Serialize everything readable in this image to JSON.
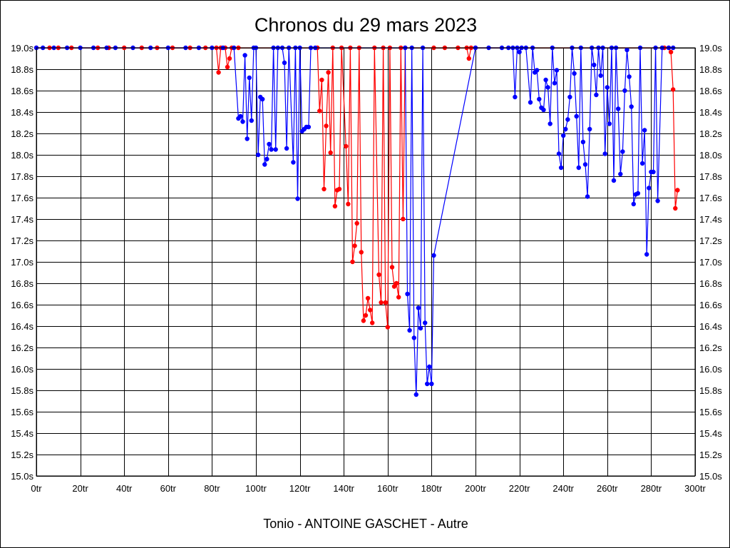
{
  "chart_data": {
    "type": "line",
    "title": "Chronos du 29 mars 2023",
    "footer": "Tonio - ANTOINE GASCHET - Autre",
    "x_unit": "tr",
    "y_unit": "s",
    "xlim": [
      0,
      300
    ],
    "ylim": [
      15.0,
      19.0
    ],
    "x_ticks": [
      0,
      20,
      40,
      60,
      80,
      100,
      120,
      140,
      160,
      180,
      200,
      220,
      240,
      260,
      280,
      300
    ],
    "y_ticks": [
      15.0,
      15.2,
      15.4,
      15.6,
      15.8,
      16.0,
      16.2,
      16.4,
      16.6,
      16.8,
      17.0,
      17.2,
      17.4,
      17.6,
      17.8,
      18.0,
      18.2,
      18.4,
      18.6,
      18.8,
      19.0
    ],
    "grid": true,
    "series": [
      {
        "color": "#ff0000",
        "points": [
          [
            0,
            19.0
          ],
          [
            6,
            19.0
          ],
          [
            10,
            19.0
          ],
          [
            16,
            19.0
          ],
          [
            28,
            19.0
          ],
          [
            33,
            19.0
          ],
          [
            40,
            19.0
          ],
          [
            48,
            19.0
          ],
          [
            55,
            19.0
          ],
          [
            62,
            19.0
          ],
          [
            70,
            19.0
          ],
          [
            77,
            19.0
          ],
          [
            82,
            19.0
          ],
          [
            83,
            18.77
          ],
          [
            84,
            19.0
          ],
          [
            86,
            19.0
          ],
          [
            87,
            18.82
          ],
          [
            88,
            18.9
          ],
          [
            89,
            19.0
          ],
          [
            92,
            19.0
          ],
          [
            128,
            19.0
          ],
          [
            129,
            18.41
          ],
          [
            130,
            18.7
          ],
          [
            131,
            17.68
          ],
          [
            132,
            18.27
          ],
          [
            133,
            18.77
          ],
          [
            134,
            18.02
          ],
          [
            135,
            19.0
          ],
          [
            136,
            17.52
          ],
          [
            137,
            17.67
          ],
          [
            138,
            17.68
          ],
          [
            139,
            19.0
          ],
          [
            141,
            18.08
          ],
          [
            142,
            17.54
          ],
          [
            143,
            19.0
          ],
          [
            144,
            17.0
          ],
          [
            145,
            17.15
          ],
          [
            146,
            17.36
          ],
          [
            147,
            19.0
          ],
          [
            148,
            17.09
          ],
          [
            149,
            16.45
          ],
          [
            150,
            16.5
          ],
          [
            151,
            16.66
          ],
          [
            152,
            16.55
          ],
          [
            153,
            16.43
          ],
          [
            154,
            19.0
          ],
          [
            156,
            16.88
          ],
          [
            157,
            16.62
          ],
          [
            158,
            19.0
          ],
          [
            159,
            16.62
          ],
          [
            160,
            16.39
          ],
          [
            161,
            19.0
          ],
          [
            162,
            16.95
          ],
          [
            163,
            16.77
          ],
          [
            164,
            16.8
          ],
          [
            165,
            16.67
          ],
          [
            166,
            19.0
          ],
          [
            167,
            17.4
          ],
          [
            168,
            19.0
          ],
          [
            181,
            19.0
          ],
          [
            186,
            19.0
          ],
          [
            192,
            19.0
          ],
          [
            196,
            19.0
          ],
          [
            197,
            18.9
          ],
          [
            198,
            19.0
          ],
          [
            200,
            19.0
          ],
          [
            286,
            19.0
          ],
          [
            288,
            19.0
          ],
          [
            289,
            18.96
          ],
          [
            290,
            18.61
          ],
          [
            291,
            17.5
          ],
          [
            292,
            17.67
          ]
        ]
      },
      {
        "color": "#0000ff",
        "points": [
          [
            0,
            19.0
          ],
          [
            3,
            19.0
          ],
          [
            8,
            19.0
          ],
          [
            14,
            19.0
          ],
          [
            20,
            19.0
          ],
          [
            26,
            19.0
          ],
          [
            32,
            19.0
          ],
          [
            36,
            19.0
          ],
          [
            44,
            19.0
          ],
          [
            52,
            19.0
          ],
          [
            60,
            19.0
          ],
          [
            68,
            19.0
          ],
          [
            74,
            19.0
          ],
          [
            80,
            19.0
          ],
          [
            85,
            19.0
          ],
          [
            90,
            19.0
          ],
          [
            92,
            18.34
          ],
          [
            93,
            18.36
          ],
          [
            94,
            18.31
          ],
          [
            95,
            18.93
          ],
          [
            96,
            18.15
          ],
          [
            97,
            18.72
          ],
          [
            98,
            18.32
          ],
          [
            99,
            19.0
          ],
          [
            100,
            19.0
          ],
          [
            101,
            18.0
          ],
          [
            102,
            18.54
          ],
          [
            103,
            18.52
          ],
          [
            104,
            17.91
          ],
          [
            105,
            17.96
          ],
          [
            106,
            18.1
          ],
          [
            107,
            18.05
          ],
          [
            108,
            19.0
          ],
          [
            109,
            18.05
          ],
          [
            110,
            19.0
          ],
          [
            112,
            19.0
          ],
          [
            113,
            18.86
          ],
          [
            114,
            18.06
          ],
          [
            115,
            19.0
          ],
          [
            117,
            17.93
          ],
          [
            118,
            19.0
          ],
          [
            119,
            17.59
          ],
          [
            120,
            19.0
          ],
          [
            121,
            18.22
          ],
          [
            122,
            18.24
          ],
          [
            123,
            18.26
          ],
          [
            124,
            18.26
          ],
          [
            125,
            19.0
          ],
          [
            127,
            19.0
          ],
          [
            168,
            19.0
          ],
          [
            169,
            16.7
          ],
          [
            170,
            16.36
          ],
          [
            171,
            19.0
          ],
          [
            172,
            16.29
          ],
          [
            173,
            15.76
          ],
          [
            174,
            16.57
          ],
          [
            175,
            16.38
          ],
          [
            176,
            19.0
          ],
          [
            177,
            16.43
          ],
          [
            178,
            15.86
          ],
          [
            179,
            16.02
          ],
          [
            180,
            15.86
          ],
          [
            181,
            17.06
          ],
          [
            200,
            19.0
          ],
          [
            206,
            19.0
          ],
          [
            212,
            19.0
          ],
          [
            215,
            19.0
          ],
          [
            217,
            19.0
          ],
          [
            218,
            18.54
          ],
          [
            219,
            19.0
          ],
          [
            220,
            18.96
          ],
          [
            221,
            19.0
          ],
          [
            223,
            19.0
          ],
          [
            225,
            18.49
          ],
          [
            226,
            19.0
          ],
          [
            227,
            18.77
          ],
          [
            228,
            18.79
          ],
          [
            229,
            18.52
          ],
          [
            230,
            18.44
          ],
          [
            231,
            18.42
          ],
          [
            232,
            18.7
          ],
          [
            233,
            18.63
          ],
          [
            234,
            18.29
          ],
          [
            235,
            19.0
          ],
          [
            236,
            18.67
          ],
          [
            237,
            18.79
          ],
          [
            238,
            18.01
          ],
          [
            239,
            17.88
          ],
          [
            240,
            18.18
          ],
          [
            241,
            18.24
          ],
          [
            242,
            18.33
          ],
          [
            243,
            18.54
          ],
          [
            244,
            19.0
          ],
          [
            245,
            18.76
          ],
          [
            246,
            18.36
          ],
          [
            247,
            17.88
          ],
          [
            248,
            19.0
          ],
          [
            249,
            18.12
          ],
          [
            250,
            17.91
          ],
          [
            251,
            17.61
          ],
          [
            252,
            18.24
          ],
          [
            253,
            19.0
          ],
          [
            254,
            18.84
          ],
          [
            255,
            18.56
          ],
          [
            256,
            19.0
          ],
          [
            257,
            18.74
          ],
          [
            258,
            19.0
          ],
          [
            259,
            18.01
          ],
          [
            260,
            18.63
          ],
          [
            261,
            18.29
          ],
          [
            262,
            19.0
          ],
          [
            263,
            17.76
          ],
          [
            264,
            19.0
          ],
          [
            265,
            18.43
          ],
          [
            266,
            17.82
          ],
          [
            267,
            18.03
          ],
          [
            268,
            18.6
          ],
          [
            269,
            18.98
          ],
          [
            270,
            18.73
          ],
          [
            271,
            18.45
          ],
          [
            272,
            17.54
          ],
          [
            273,
            17.63
          ],
          [
            274,
            17.64
          ],
          [
            275,
            19.0
          ],
          [
            276,
            17.92
          ],
          [
            277,
            18.23
          ],
          [
            278,
            17.07
          ],
          [
            279,
            17.69
          ],
          [
            280,
            17.84
          ],
          [
            281,
            17.84
          ],
          [
            282,
            19.0
          ],
          [
            283,
            17.57
          ],
          [
            285,
            19.0
          ],
          [
            288,
            19.0
          ],
          [
            290,
            19.0
          ]
        ]
      }
    ]
  }
}
